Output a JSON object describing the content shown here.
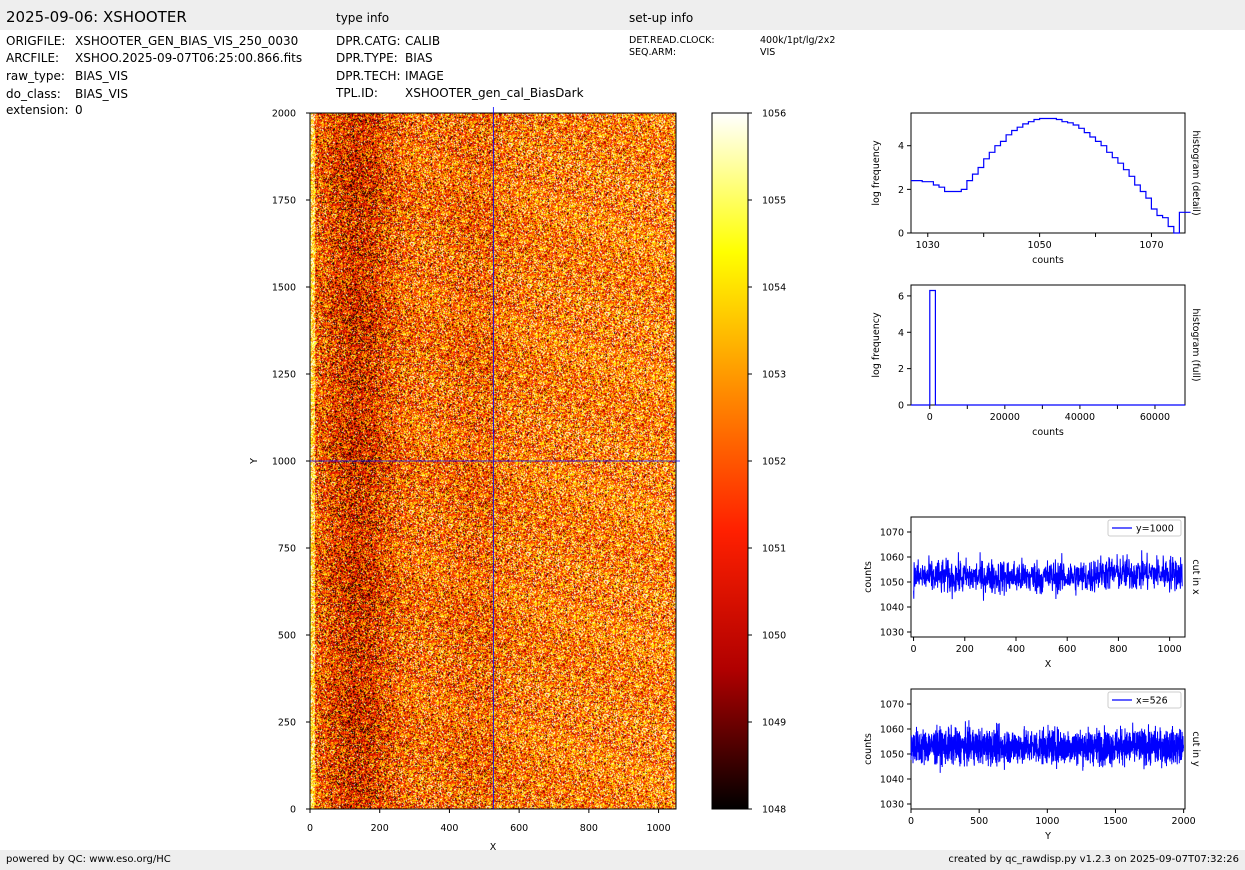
{
  "header": {
    "title": "2025-09-06: XSHOOTER",
    "type_info_label": "type info",
    "setup_info_label": "set-up info"
  },
  "file_info": [
    {
      "key": "ORIGFILE:",
      "value": "XSHOOTER_GEN_BIAS_VIS_250_0030"
    },
    {
      "key": "ARCFILE:",
      "value": "XSHOO.2025-09-07T06:25:00.866.fits"
    },
    {
      "key": "raw_type:",
      "value": "BIAS_VIS"
    },
    {
      "key": "do_class:",
      "value": "BIAS_VIS"
    },
    {
      "key": "extension:",
      "value": "0"
    }
  ],
  "type_info": [
    {
      "key": "DPR.CATG:",
      "value": "CALIB"
    },
    {
      "key": "DPR.TYPE:",
      "value": "BIAS"
    },
    {
      "key": "DPR.TECH:",
      "value": "IMAGE"
    },
    {
      "key": "TPL.ID:",
      "value": "XSHOOTER_gen_cal_BiasDark"
    }
  ],
  "setup_info": [
    {
      "key": "DET.READ.CLOCK:",
      "value": "400k/1pt/lg/2x2"
    },
    {
      "key": "SEQ.ARM:",
      "value": "VIS"
    }
  ],
  "footer": {
    "left": "powered by QC: www.eso.org/HC",
    "right": "created by qc_rawdisp.py v1.2.3 on 2025-09-07T07:32:26"
  },
  "colors": {
    "line": "#0000ff",
    "header_bg": "#eeeeee",
    "colormap": [
      "#000000",
      "#b00000",
      "#ff2000",
      "#ff8c00",
      "#ffff00",
      "#ffffff"
    ]
  },
  "chart_data": [
    {
      "type": "heatmap",
      "xlabel": "X",
      "ylabel": "Y",
      "xlim": [
        0,
        1050
      ],
      "ylim": [
        0,
        2000
      ],
      "xticks": [
        0,
        200,
        400,
        600,
        800,
        1000
      ],
      "yticks": [
        0,
        250,
        500,
        750,
        1000,
        1250,
        1500,
        1750,
        2000
      ],
      "crosshair": {
        "x": 526,
        "y": 1000
      },
      "colorbar": {
        "min": 1048,
        "max": 1056,
        "ticks": [
          1048,
          1049,
          1050,
          1051,
          1052,
          1053,
          1054,
          1055,
          1056
        ]
      }
    },
    {
      "type": "line",
      "ylabel": "log frequency",
      "xlabel": "counts",
      "side_label": "histogram (detail)",
      "xlim": [
        1027,
        1076
      ],
      "ylim": [
        0,
        5.5
      ],
      "xticks": [
        1030,
        1050,
        1070
      ],
      "yticks": [
        0,
        2,
        4
      ],
      "x": [
        1027,
        1028,
        1029,
        1030,
        1031,
        1032,
        1033,
        1034,
        1035,
        1036,
        1037,
        1038,
        1039,
        1040,
        1041,
        1042,
        1043,
        1044,
        1045,
        1046,
        1047,
        1048,
        1049,
        1050,
        1051,
        1052,
        1053,
        1054,
        1055,
        1056,
        1057,
        1058,
        1059,
        1060,
        1061,
        1062,
        1063,
        1064,
        1065,
        1066,
        1067,
        1068,
        1069,
        1070,
        1071,
        1072,
        1073,
        1074,
        1075,
        1076
      ],
      "y": [
        2.4,
        2.4,
        2.35,
        2.35,
        2.2,
        2.1,
        1.9,
        1.9,
        1.9,
        2.0,
        2.4,
        2.7,
        3.0,
        3.4,
        3.7,
        4.0,
        4.2,
        4.5,
        4.7,
        4.85,
        5.0,
        5.1,
        5.2,
        5.25,
        5.25,
        5.25,
        5.2,
        5.1,
        5.05,
        4.95,
        4.8,
        4.6,
        4.4,
        4.2,
        4.0,
        3.7,
        3.45,
        3.2,
        2.9,
        2.6,
        2.2,
        1.9,
        1.6,
        1.1,
        0.8,
        0.7,
        0.3,
        0.0,
        0.95,
        0.95
      ]
    },
    {
      "type": "line",
      "ylabel": "log frequency",
      "xlabel": "counts",
      "side_label": "histogram (full)",
      "xlim": [
        -5000,
        68000
      ],
      "ylim": [
        0,
        6.6
      ],
      "xticks": [
        0,
        20000,
        40000,
        60000
      ],
      "yticks": [
        0,
        2,
        4,
        6
      ],
      "x": [
        -5000,
        0,
        0,
        1500,
        1500,
        68000
      ],
      "y": [
        0,
        0,
        6.3,
        6.3,
        0,
        0
      ]
    },
    {
      "type": "line",
      "ylabel": "counts",
      "xlabel": "X",
      "side_label": "cut in x",
      "legend": "y=1000",
      "xlim": [
        -10,
        1060
      ],
      "ylim": [
        1028,
        1076
      ],
      "xticks": [
        0,
        200,
        400,
        600,
        800,
        1000
      ],
      "yticks": [
        1030,
        1040,
        1050,
        1060,
        1070
      ],
      "n_points": 1050,
      "mean": 1052,
      "noise_sigma": 3.5
    },
    {
      "type": "line",
      "ylabel": "counts",
      "xlabel": "Y",
      "side_label": "cut in y",
      "legend": "x=526",
      "xlim": [
        0,
        2010
      ],
      "ylim": [
        1028,
        1076
      ],
      "xticks": [
        0,
        500,
        1000,
        1500,
        2000
      ],
      "yticks": [
        1030,
        1040,
        1050,
        1060,
        1070
      ],
      "n_points": 2000,
      "mean": 1053,
      "noise_sigma": 3.5
    }
  ]
}
